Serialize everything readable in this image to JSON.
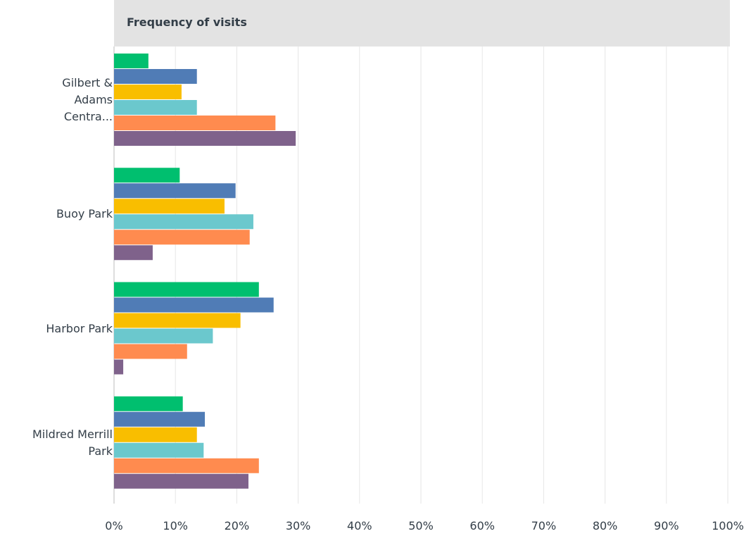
{
  "chart_data": {
    "type": "hbar",
    "title": "Frequency of visits",
    "categories": [
      "Gilbert & Adams Centra...",
      "Buoy Park",
      "Harbor Park",
      "Mildred Merrill Park"
    ],
    "series": [
      {
        "color": "#00bf6f",
        "values": [
          5.6,
          10.7,
          23.6,
          11.2
        ]
      },
      {
        "color": "#507cb6",
        "values": [
          13.5,
          19.8,
          26.0,
          14.8
        ]
      },
      {
        "color": "#f9be00",
        "values": [
          11.0,
          18.0,
          20.6,
          13.5
        ]
      },
      {
        "color": "#6bc8cd",
        "values": [
          13.5,
          22.7,
          16.1,
          14.6
        ]
      },
      {
        "color": "#ff8b4f",
        "values": [
          26.3,
          22.1,
          11.9,
          23.6
        ]
      },
      {
        "color": "#7f628b",
        "values": [
          29.6,
          6.3,
          1.5,
          21.9
        ]
      }
    ],
    "xlim": [
      0,
      100
    ],
    "xticks": [
      {
        "value": 0,
        "label": "0%"
      },
      {
        "value": 10,
        "label": "10%"
      },
      {
        "value": 20,
        "label": "20%"
      },
      {
        "value": 30,
        "label": "30%"
      },
      {
        "value": 40,
        "label": "40%"
      },
      {
        "value": 50,
        "label": "50%"
      },
      {
        "value": 60,
        "label": "60%"
      },
      {
        "value": 70,
        "label": "70%"
      },
      {
        "value": 80,
        "label": "80%"
      },
      {
        "value": 90,
        "label": "90%"
      },
      {
        "value": 100,
        "label": "100%"
      }
    ],
    "grid": true
  }
}
